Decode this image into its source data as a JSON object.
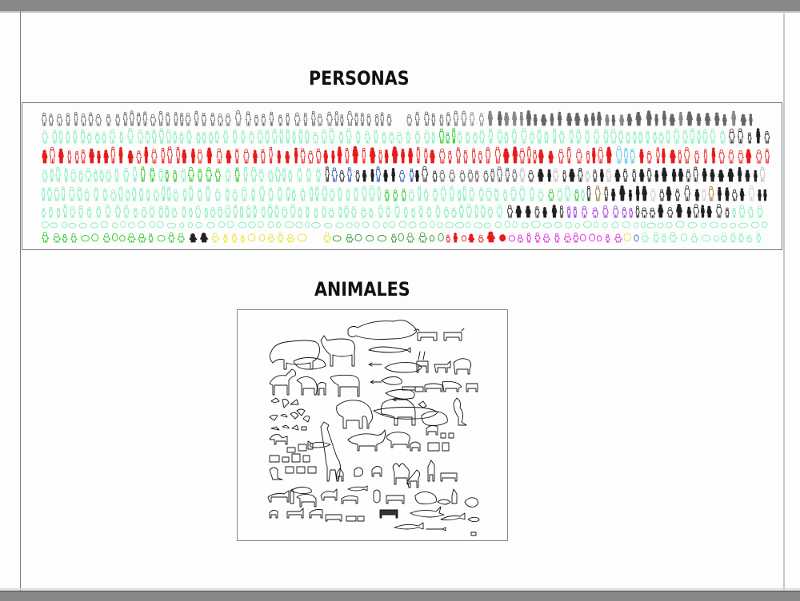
{
  "page": {
    "sections": [
      {
        "title": "PERSONAS",
        "rows": [
          {
            "color": "#555555",
            "style": "outline+filled-gray",
            "count": 110
          },
          {
            "color": "#7fefb8",
            "style": "outline-mint",
            "count": 115
          },
          {
            "color": "#e81c1c",
            "style": "red",
            "count": 95
          },
          {
            "color": "#7fefb8",
            "style": "mint+green+black",
            "count": 110
          },
          {
            "color": "#7fefb8",
            "style": "mint+black",
            "count": 115
          },
          {
            "color": "#7fefb8",
            "style": "mint+purple+black",
            "count": 120
          },
          {
            "color": "#7fefb8",
            "style": "mint-small",
            "count": 120
          },
          {
            "color": "#22cc22",
            "style": "green+yellow+red+magenta",
            "count": 95
          }
        ]
      },
      {
        "title": "ANIMALES"
      }
    ],
    "colors": {
      "gray_bar": "#888888",
      "page_bg": "#fdfdfd",
      "mint": "#7fefb8",
      "red": "#e81c1c",
      "green": "#22cc22",
      "yellow": "#f0e020",
      "magenta": "#e020e0",
      "purple": "#9a30e0",
      "black": "#222222",
      "gray": "#666666"
    }
  }
}
